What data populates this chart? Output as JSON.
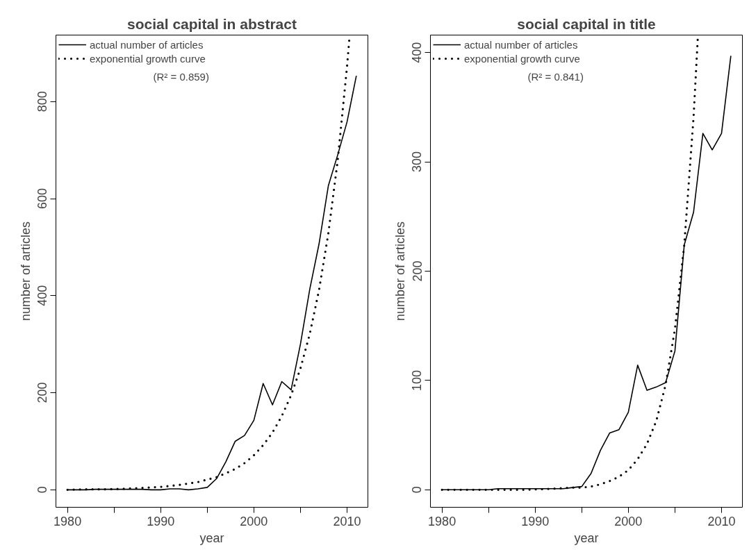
{
  "chart_data": [
    {
      "type": "line",
      "title": "social capital in abstract",
      "xlabel": "year",
      "ylabel": "number of articles",
      "xlim": [
        1978.76,
        2012.24
      ],
      "ylim": [
        -36,
        937
      ],
      "xticks": [
        1980,
        {
          "value": 1985,
          "label": null
        },
        1990,
        {
          "value": 1995,
          "label": null
        },
        2000,
        {
          "value": 2005,
          "label": null
        },
        2010
      ],
      "yticks": [
        0,
        200,
        400,
        600,
        800
      ],
      "legend": "top left",
      "annotations": [
        "(R² = 0.859)"
      ],
      "series": [
        {
          "name": "actual number of articles",
          "color": "#000000",
          "line_style": "solid",
          "x": [
            1980,
            1981,
            1982,
            1983,
            1984,
            1985,
            1986,
            1987,
            1988,
            1989,
            1990,
            1991,
            1992,
            1993,
            1994,
            1995,
            1996,
            1997,
            1998,
            1999,
            2000,
            2001,
            2002,
            2003,
            2004,
            2005,
            2006,
            2007,
            2008,
            2009,
            2010,
            2011
          ],
          "values": [
            0,
            0,
            0,
            1,
            1,
            1,
            1,
            1,
            1,
            0,
            0,
            2,
            2,
            0,
            2,
            5,
            23,
            58,
            100,
            112,
            143,
            219,
            175,
            223,
            206,
            300,
            413,
            507,
            627,
            690,
            758,
            853
          ]
        },
        {
          "name": "exponential growth curve",
          "color": "#000000",
          "line_style": "dotted",
          "x": [
            1980,
            1982,
            1984,
            1986,
            1988,
            1990,
            1992,
            1994,
            1995,
            1996,
            1997,
            1998,
            1999,
            2000,
            2001,
            2002,
            2003,
            2004,
            2005,
            2006,
            2007,
            2008,
            2009,
            2010,
            2010.28
          ],
          "values": [
            0,
            1,
            1,
            2,
            4,
            6,
            10,
            16,
            21,
            26,
            34,
            43,
            55,
            71,
            92,
            118,
            152,
            195,
            250,
            321,
            412,
            529,
            679,
            872,
            936
          ]
        }
      ]
    },
    {
      "type": "line",
      "title": "social capital in title",
      "xlabel": "year",
      "ylabel": "number of articles",
      "xlim": [
        1978.76,
        2012.24
      ],
      "ylim": [
        -16,
        416
      ],
      "xticks": [
        1980,
        {
          "value": 1985,
          "label": null
        },
        1990,
        {
          "value": 1995,
          "label": null
        },
        2000,
        {
          "value": 2005,
          "label": null
        },
        2010
      ],
      "yticks": [
        0,
        100,
        200,
        300,
        400
      ],
      "legend": "top left",
      "annotations": [
        "(R² = 0.841)"
      ],
      "series": [
        {
          "name": "actual number of articles",
          "color": "#000000",
          "line_style": "solid",
          "x": [
            1980,
            1981,
            1982,
            1983,
            1984,
            1985,
            1986,
            1987,
            1988,
            1989,
            1990,
            1991,
            1992,
            1993,
            1994,
            1995,
            1996,
            1997,
            1998,
            1999,
            2000,
            2001,
            2002,
            2003,
            2004,
            2005,
            2006,
            2007,
            2008,
            2009,
            2010,
            2011
          ],
          "values": [
            0,
            0,
            0,
            0,
            0,
            0,
            1,
            1,
            1,
            1,
            1,
            1,
            1,
            1,
            2,
            3,
            15,
            36,
            52,
            55,
            71,
            114,
            91,
            94,
            98,
            127,
            224,
            254,
            326,
            311,
            326,
            397
          ]
        },
        {
          "name": "exponential growth curve",
          "color": "#000000",
          "line_style": "dotted",
          "x": [
            1980,
            1983,
            1986,
            1989,
            1992,
            1994,
            1995,
            1996,
            1997,
            1998,
            1999,
            2000,
            2001,
            2002,
            2003,
            2004,
            2005,
            2006,
            2007,
            2007.47
          ],
          "values": [
            0,
            0,
            0,
            0,
            1,
            2,
            2,
            3,
            5,
            8,
            12,
            18,
            28,
            42,
            63,
            96,
            147,
            224,
            341,
            416
          ]
        }
      ]
    }
  ]
}
